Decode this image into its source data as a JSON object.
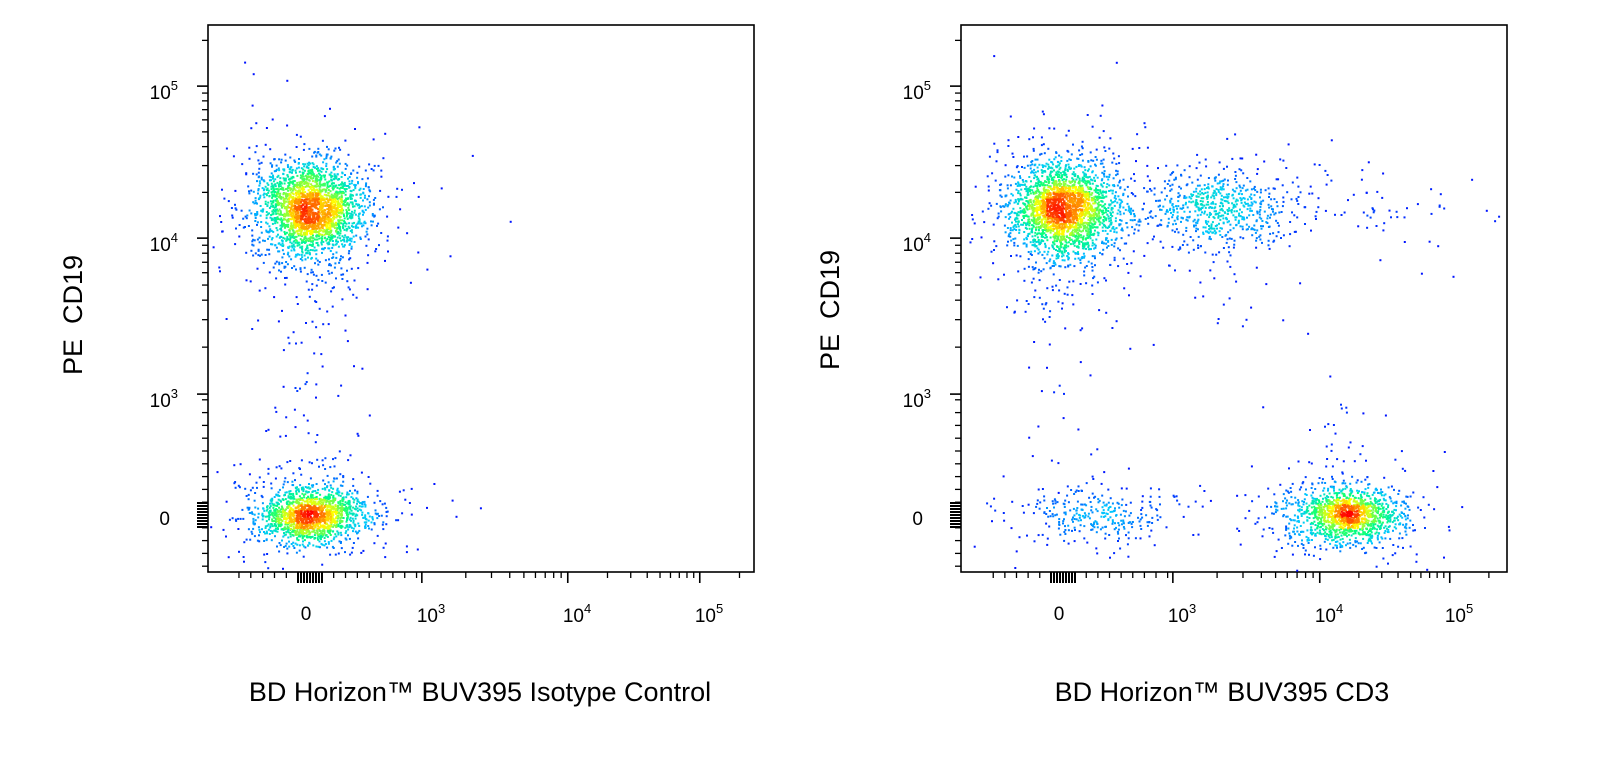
{
  "chart_data": [
    {
      "type": "scatter",
      "subtype": "flow-cytometry-density-dot-plot",
      "xlabel": "BD Horizon™ BUV395 Isotype Control",
      "ylabel": "PE  CD19",
      "x_scale": "biexponential",
      "y_scale": "biexponential",
      "x_tick_labels": [
        "0",
        "10^3",
        "10^4",
        "10^5"
      ],
      "y_tick_labels": [
        "0",
        "10^3",
        "10^4",
        "10^5"
      ],
      "xlim": [
        -700,
        200000
      ],
      "ylim": [
        -700,
        250000
      ],
      "density_colormap": [
        "#0000ff",
        "#00c8ff",
        "#00ff80",
        "#ffff00",
        "#ff0000"
      ],
      "populations": [
        {
          "x": 0,
          "y": 16000,
          "n": 2600
        },
        {
          "x": 0,
          "y": 0,
          "n": 1700
        }
      ],
      "outliers": [
        {
          "x": -200,
          "y": 110000
        },
        {
          "x": 4000,
          "y": 13000
        },
        {
          "x": 2500,
          "y": 60
        },
        {
          "x": 1600,
          "y": 120
        },
        {
          "x": 1200,
          "y": 250
        }
      ]
    },
    {
      "type": "scatter",
      "subtype": "flow-cytometry-density-dot-plot",
      "xlabel": "BD Horizon™ BUV395 CD3",
      "ylabel": "PE  CD19",
      "x_scale": "biexponential",
      "y_scale": "biexponential",
      "x_tick_labels": [
        "0",
        "10^3",
        "10^4",
        "10^5"
      ],
      "y_tick_labels": [
        "0",
        "10^3",
        "10^4",
        "10^5"
      ],
      "xlim": [
        -700,
        200000
      ],
      "ylim": [
        -700,
        250000
      ],
      "density_colormap": [
        "#0000ff",
        "#00c8ff",
        "#00ff80",
        "#ffff00",
        "#ff0000"
      ],
      "populations": [
        {
          "x": 0,
          "y": 16000,
          "n": 2600
        },
        {
          "x": 2000,
          "y": 16000,
          "n": 700
        },
        {
          "x": 20000,
          "y": 16000,
          "n": 60
        },
        {
          "x": 16000,
          "y": 0,
          "n": 1500
        },
        {
          "x": 300,
          "y": 0,
          "n": 320
        }
      ],
      "outliers": [
        {
          "x": -600,
          "y": 160000
        },
        {
          "x": 80000,
          "y": 9000
        },
        {
          "x": 60000,
          "y": 6000
        },
        {
          "x": 90000,
          "y": 500
        },
        {
          "x": -300,
          "y": 1500
        }
      ]
    }
  ]
}
